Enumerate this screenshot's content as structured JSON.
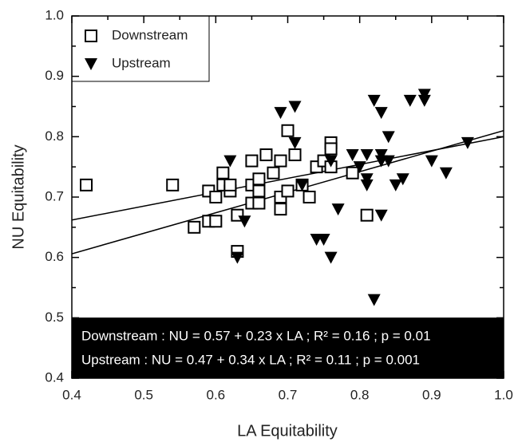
{
  "chart_data": {
    "type": "scatter",
    "xlabel": "LA Equitability",
    "ylabel": "NU Equitability",
    "xlim": [
      0.4,
      1.0
    ],
    "ylim": [
      0.4,
      1.0
    ],
    "xticks": [
      0.4,
      0.5,
      0.6,
      0.7,
      0.8,
      0.9,
      {
        "value": 1,
        "label": "1.0"
      }
    ],
    "yticks": [
      0.4,
      0.5,
      0.6,
      0.7,
      0.8,
      0.9,
      {
        "value": 1,
        "label": "1.0"
      }
    ],
    "series": [
      {
        "name": "Downstream",
        "marker": "square",
        "color": "#000000",
        "x": [
          0.42,
          0.54,
          0.57,
          0.59,
          0.6,
          0.59,
          0.6,
          0.61,
          0.61,
          0.62,
          0.62,
          0.63,
          0.63,
          0.65,
          0.65,
          0.65,
          0.66,
          0.66,
          0.66,
          0.67,
          0.68,
          0.69,
          0.69,
          0.69,
          0.7,
          0.7,
          0.71,
          0.72,
          0.73,
          0.74,
          0.75,
          0.76,
          0.76,
          0.76,
          0.79,
          0.81
        ],
        "values": [
          0.72,
          0.72,
          0.65,
          0.66,
          0.66,
          0.71,
          0.7,
          0.74,
          0.72,
          0.71,
          0.72,
          0.61,
          0.67,
          0.72,
          0.76,
          0.69,
          0.71,
          0.73,
          0.69,
          0.77,
          0.74,
          0.68,
          0.7,
          0.76,
          0.81,
          0.71,
          0.77,
          0.72,
          0.7,
          0.75,
          0.76,
          0.79,
          0.78,
          0.75,
          0.74,
          0.67
        ]
      },
      {
        "name": "Upstream",
        "marker": "triangle-down",
        "color": "#000000",
        "x": [
          0.63,
          0.64,
          0.62,
          0.69,
          0.71,
          0.71,
          0.72,
          0.74,
          0.75,
          0.76,
          0.77,
          0.76,
          0.79,
          0.8,
          0.81,
          0.81,
          0.81,
          0.82,
          0.82,
          0.83,
          0.83,
          0.83,
          0.84,
          0.84,
          0.83,
          0.85,
          0.86,
          0.87,
          0.89,
          0.89,
          0.9,
          0.92,
          0.95
        ],
        "values": [
          0.6,
          0.66,
          0.76,
          0.84,
          0.85,
          0.79,
          0.72,
          0.63,
          0.63,
          0.6,
          0.68,
          0.76,
          0.77,
          0.75,
          0.77,
          0.73,
          0.72,
          0.53,
          0.86,
          0.84,
          0.67,
          0.77,
          0.8,
          0.76,
          0.76,
          0.72,
          0.73,
          0.86,
          0.87,
          0.86,
          0.76,
          0.74,
          0.79
        ]
      }
    ],
    "fits": [
      {
        "intercept": 0.57,
        "slope": 0.23
      },
      {
        "intercept": 0.47,
        "slope": 0.34
      }
    ],
    "annotations": [
      "Downstream : NU = 0.57 + 0.23 x LA ; R² = 0.16 ; p = 0.01",
      "Upstream : NU = 0.47 + 0.34 x LA ; R² = 0.11 ; p = 0.001"
    ],
    "legend": "upper left"
  }
}
